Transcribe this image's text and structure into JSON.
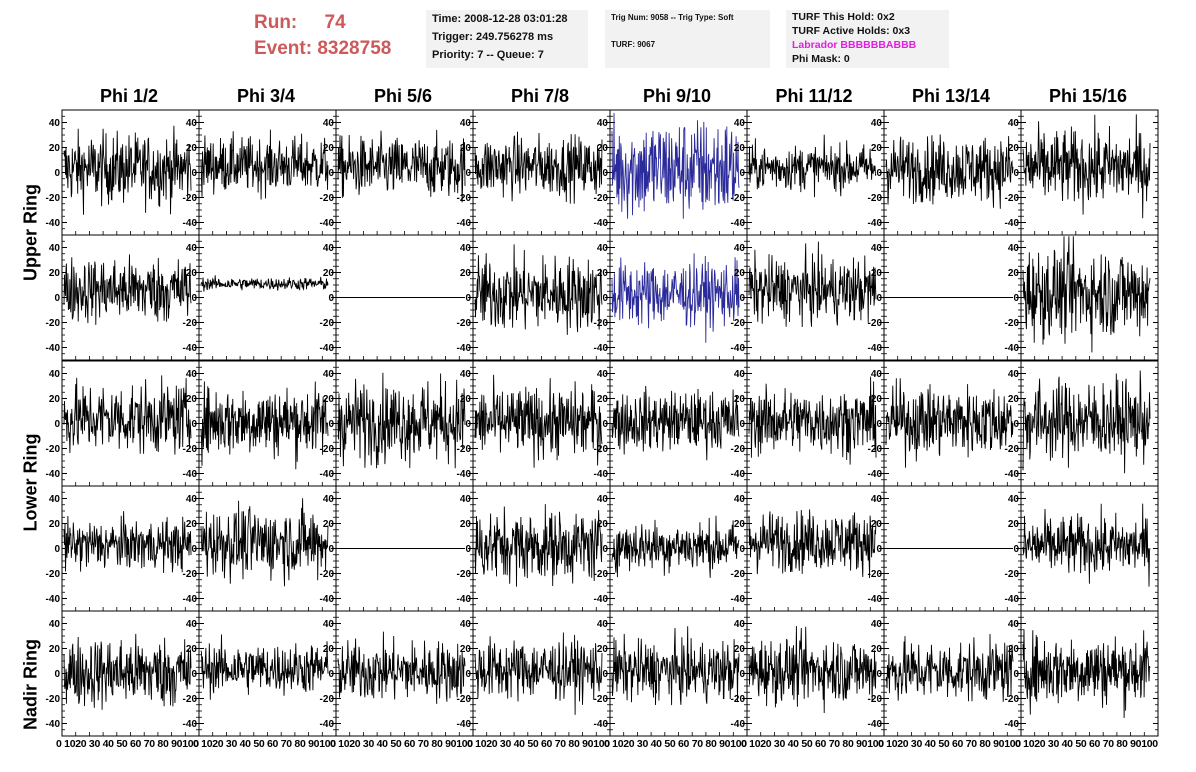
{
  "header": {
    "run_label": "Run:",
    "run_value": "74",
    "event_label": "Event:",
    "event_value": "8328758"
  },
  "time_box": {
    "line1": "Time: 2008-12-28 03:01:28",
    "line2": "Trigger: 249.756278 ms",
    "line3": "Priority: 7 -- Queue: 7"
  },
  "trig_box": {
    "line1": "Trig Num: 9058 -- Trig Type: Soft",
    "line2": "TURF: 9067"
  },
  "turf_box": {
    "line1": "TURF This Hold: 0x2",
    "line2": "TURF Active Holds: 0x3",
    "line3": "Labrador BBBBBBABBB",
    "line4": "Phi Mask: 0",
    "labrador_color": "#e020e0"
  },
  "chart_data": {
    "type": "line",
    "columns": [
      "Phi 1/2",
      "Phi 3/4",
      "Phi 5/6",
      "Phi 7/8",
      "Phi 9/10",
      "Phi 11/12",
      "Phi 13/14",
      "Phi 15/16"
    ],
    "rows": [
      "Upper Ring",
      "Upper Ring",
      "Lower Ring",
      "Lower Ring",
      "Nadir Ring"
    ],
    "row_labels": [
      {
        "label": "Upper Ring",
        "span_rows": [
          0,
          1
        ]
      },
      {
        "label": "Lower Ring",
        "span_rows": [
          2,
          3
        ]
      },
      {
        "label": "Nadir Ring",
        "span_rows": [
          4
        ]
      }
    ],
    "xlim": [
      0,
      100
    ],
    "ylim": [
      -50,
      50
    ],
    "y_ticks": [
      -40,
      -20,
      0,
      20,
      40
    ],
    "x_tick_labels": [
      "0",
      "10",
      "20",
      "30",
      "40",
      "50",
      "60",
      "70",
      "80",
      "90",
      "100"
    ],
    "x_tick_label_strip": "0 1020 30 40 50 60 70 80 90100",
    "trace_color": "#000000",
    "highlight_color": "#2a2a9a",
    "panels": [
      [
        {
          "amp": 14,
          "off": 3,
          "flat": false,
          "hl": false
        },
        {
          "amp": 11,
          "off": 6,
          "flat": false,
          "hl": false
        },
        {
          "amp": 12,
          "off": 4,
          "flat": false,
          "hl": false
        },
        {
          "amp": 12,
          "off": 5,
          "flat": false,
          "hl": false
        },
        {
          "amp": 20,
          "off": 3,
          "flat": false,
          "hl": true
        },
        {
          "amp": 9,
          "off": 4,
          "flat": false,
          "hl": false
        },
        {
          "amp": 13,
          "off": 3,
          "flat": false,
          "hl": false
        },
        {
          "amp": 15,
          "off": 4,
          "flat": false,
          "hl": false
        }
      ],
      [
        {
          "amp": 13,
          "off": 6,
          "flat": false,
          "hl": false
        },
        {
          "amp": 2.5,
          "off": 11,
          "flat": false,
          "hl": false
        },
        {
          "amp": 0,
          "off": 0,
          "flat": true,
          "hl": false
        },
        {
          "amp": 15,
          "off": 3,
          "flat": false,
          "hl": false
        },
        {
          "amp": 13,
          "off": 3,
          "flat": false,
          "hl": true
        },
        {
          "amp": 13,
          "off": 6,
          "flat": false,
          "hl": false
        },
        {
          "amp": 0,
          "off": 0,
          "flat": true,
          "hl": false
        },
        {
          "amp": 18,
          "off": 4,
          "flat": false,
          "hl": false
        }
      ],
      [
        {
          "amp": 14,
          "off": 4,
          "flat": false,
          "hl": false
        },
        {
          "amp": 14,
          "off": 2,
          "flat": false,
          "hl": false
        },
        {
          "amp": 16,
          "off": 2,
          "flat": false,
          "hl": false
        },
        {
          "amp": 14,
          "off": 1,
          "flat": false,
          "hl": false
        },
        {
          "amp": 12,
          "off": 2,
          "flat": false,
          "hl": false
        },
        {
          "amp": 13,
          "off": 2,
          "flat": false,
          "hl": false
        },
        {
          "amp": 14,
          "off": 2,
          "flat": false,
          "hl": false
        },
        {
          "amp": 16,
          "off": 2,
          "flat": false,
          "hl": false
        }
      ],
      [
        {
          "amp": 10,
          "off": 3,
          "flat": false,
          "hl": false
        },
        {
          "amp": 14,
          "off": 5,
          "flat": false,
          "hl": false
        },
        {
          "amp": 0,
          "off": 0,
          "flat": true,
          "hl": false
        },
        {
          "amp": 14,
          "off": 2,
          "flat": false,
          "hl": false
        },
        {
          "amp": 10,
          "off": 2,
          "flat": false,
          "hl": false
        },
        {
          "amp": 12,
          "off": 6,
          "flat": false,
          "hl": false
        },
        {
          "amp": 0,
          "off": 0,
          "flat": true,
          "hl": false
        },
        {
          "amp": 12,
          "off": 2,
          "flat": false,
          "hl": false
        }
      ],
      [
        {
          "amp": 14,
          "off": 1,
          "flat": false,
          "hl": false
        },
        {
          "amp": 10,
          "off": 4,
          "flat": false,
          "hl": false
        },
        {
          "amp": 12,
          "off": 2,
          "flat": false,
          "hl": false
        },
        {
          "amp": 12,
          "off": 3,
          "flat": false,
          "hl": false
        },
        {
          "amp": 12,
          "off": 2,
          "flat": false,
          "hl": false
        },
        {
          "amp": 13,
          "off": 3,
          "flat": false,
          "hl": false
        },
        {
          "amp": 12,
          "off": 2,
          "flat": false,
          "hl": false
        },
        {
          "amp": 14,
          "off": 3,
          "flat": false,
          "hl": false
        }
      ]
    ]
  }
}
